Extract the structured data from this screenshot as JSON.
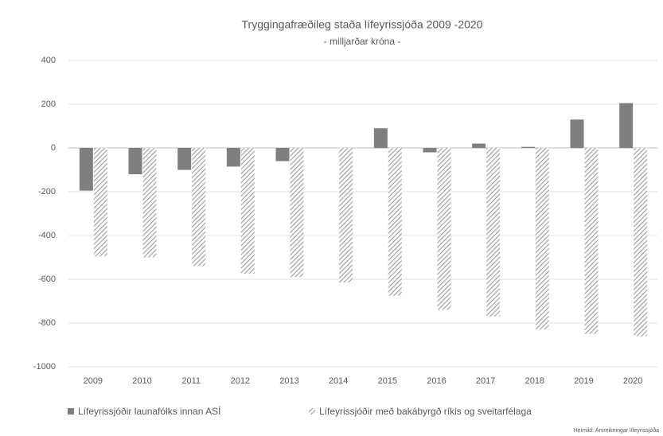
{
  "chart_data": {
    "type": "bar",
    "title": "Tryggingafræðileg staða lífeyrissjóða 2009 -2020",
    "subtitle": "- milljarðar króna -",
    "categories": [
      "2009",
      "2010",
      "2011",
      "2012",
      "2013",
      "2014",
      "2015",
      "2016",
      "2017",
      "2018",
      "2019",
      "2020"
    ],
    "series": [
      {
        "name": "Lífeyrissjóðir launafólks innan ASÍ",
        "color": "#7f7f7f",
        "hatch": false,
        "values": [
          -195,
          -120,
          -100,
          -85,
          -60,
          0,
          90,
          -20,
          20,
          5,
          130,
          205
        ]
      },
      {
        "name": "Lífeyrissjóðir með bakábyrgð ríkis og sveitarfélaga",
        "color": "#9a9a9a",
        "hatch": true,
        "values": [
          -495,
          -500,
          -540,
          -575,
          -590,
          -615,
          -675,
          -740,
          -770,
          -830,
          -850,
          -860
        ]
      }
    ],
    "ylim": [
      -1000,
      400
    ],
    "yticks": [
      -1000,
      -800,
      -600,
      -400,
      -200,
      0,
      200,
      400
    ],
    "grid": true,
    "source": "Heimild: Ársreikningar lífeyrissjóða"
  }
}
